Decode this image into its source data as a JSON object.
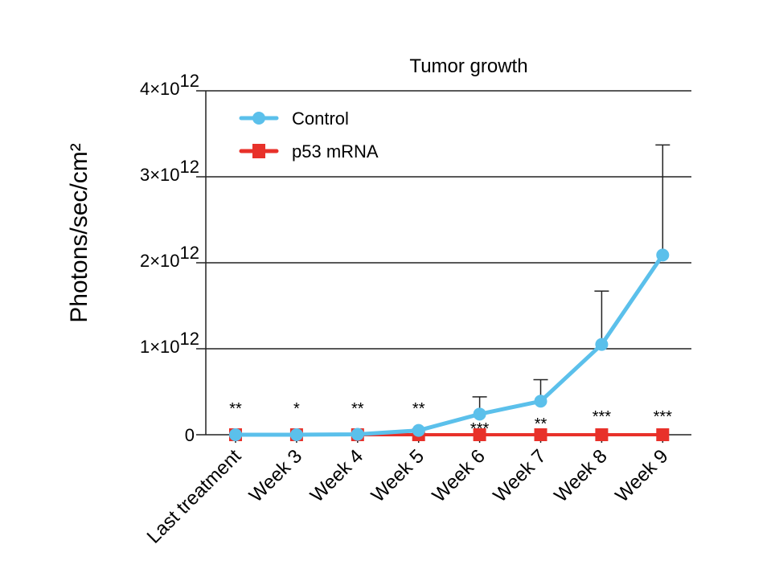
{
  "chart_data": {
    "type": "line",
    "title": "Tumor growth",
    "ylabel": "Photons/sec/cm²",
    "xlabel": "",
    "ylim": [
      0,
      4000000000000.0
    ],
    "yticks": [
      {
        "value": 0,
        "label": "0"
      },
      {
        "value": 1000000000000.0,
        "label": "1×10",
        "exp": "12"
      },
      {
        "value": 2000000000000.0,
        "label": "2×10",
        "exp": "12"
      },
      {
        "value": 3000000000000.0,
        "label": "3×10",
        "exp": "12"
      },
      {
        "value": 4000000000000.0,
        "label": "4×10",
        "exp": "12"
      }
    ],
    "grid": "horizontal",
    "legend": "top-left",
    "categories": [
      "Last treatment",
      "Week 3",
      "Week 4",
      "Week 5",
      "Week 6",
      "Week 7",
      "Week 8",
      "Week 9"
    ],
    "series": [
      {
        "name": "Control",
        "color": "#5bc0eb",
        "marker": "circle",
        "values": [
          0,
          0,
          5000000000.0,
          50000000000.0,
          240000000000.0,
          390000000000.0,
          1050000000000.0,
          2090000000000.0
        ],
        "error_upper": [
          null,
          null,
          null,
          null,
          440000000000.0,
          640000000000.0,
          1670000000000.0,
          3370000000000.0
        ]
      },
      {
        "name": "p53 mRNA",
        "color": "#e8312a",
        "marker": "square",
        "values": [
          0,
          0,
          0,
          0,
          0,
          0,
          0,
          0
        ]
      }
    ],
    "significance": [
      "**",
      "*",
      "**",
      "**",
      "***",
      "**",
      "***",
      "***"
    ]
  }
}
